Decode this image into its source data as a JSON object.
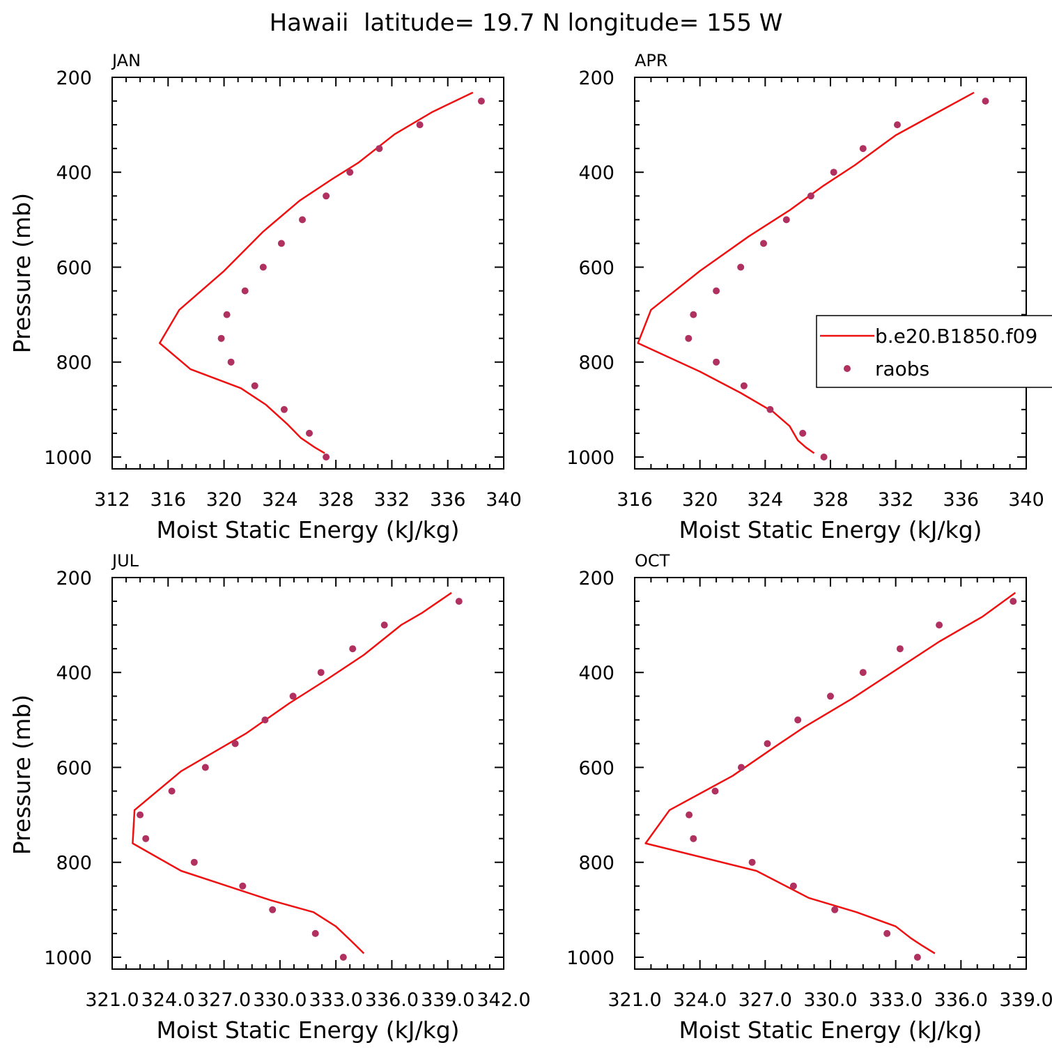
{
  "figure_title": "Hawaii  latitude= 19.7 N longitude= 155 W",
  "legend": {
    "line_label": "b.e20.B1850.f09",
    "marker_label": "raobs",
    "placement": "right of APR panel"
  },
  "colors": {
    "model_line": "#ee1111",
    "obs_marker": "#b03060",
    "axes": "#000000"
  },
  "chart_data": [
    {
      "type": "line+scatter",
      "panel_label": "JAN",
      "xlabel": "Moist Static Energy (kJ/kg)",
      "ylabel": "Pressure (mb)",
      "xlim": [
        312,
        340
      ],
      "ylim": [
        1025,
        200
      ],
      "y_inverted": true,
      "xticks": [
        312,
        316,
        320,
        324,
        328,
        332,
        336,
        340
      ],
      "xtick_labels": [
        "312",
        "316",
        "320",
        "324",
        "328",
        "332",
        "336",
        "340"
      ],
      "yticks": [
        200,
        400,
        600,
        800,
        1000
      ],
      "ytick_labels": [
        "200",
        "400",
        "600",
        "800",
        "1000"
      ],
      "series": [
        {
          "kind": "line",
          "points": [
            [
              327.2,
              992
            ],
            [
              326.5,
              980
            ],
            [
              325.5,
              960
            ],
            [
              324.5,
              930
            ],
            [
              323,
              890
            ],
            [
              321.2,
              855
            ],
            [
              317.6,
              815
            ],
            [
              315.4,
              760
            ],
            [
              316.8,
              690
            ],
            [
              320,
              608
            ],
            [
              322.8,
              525
            ],
            [
              325.4,
              460
            ],
            [
              327.7,
              415
            ],
            [
              329.6,
              380
            ],
            [
              332.2,
              320
            ],
            [
              334.9,
              273
            ],
            [
              337.8,
              232
            ]
          ]
        },
        {
          "kind": "scatter",
          "points": [
            [
              327.3,
              1000
            ],
            [
              326.1,
              950
            ],
            [
              324.3,
              900
            ],
            [
              322.2,
              850
            ],
            [
              320.5,
              800
            ],
            [
              319.8,
              750
            ],
            [
              320.2,
              700
            ],
            [
              321.5,
              650
            ],
            [
              322.8,
              600
            ],
            [
              324.1,
              550
            ],
            [
              325.6,
              500
            ],
            [
              327.3,
              450
            ],
            [
              329,
              400
            ],
            [
              331.1,
              350
            ],
            [
              334,
              300
            ],
            [
              338.4,
              250
            ]
          ]
        }
      ]
    },
    {
      "type": "line+scatter",
      "panel_label": "APR",
      "xlabel": "Moist Static Energy (kJ/kg)",
      "ylabel": "",
      "xlim": [
        316,
        340
      ],
      "ylim": [
        1025,
        200
      ],
      "y_inverted": true,
      "xticks": [
        316,
        320,
        324,
        328,
        332,
        336,
        340
      ],
      "xtick_labels": [
        "316",
        "320",
        "324",
        "328",
        "332",
        "336",
        "340"
      ],
      "yticks": [
        200,
        400,
        600,
        800,
        1000
      ],
      "ytick_labels": [
        "200",
        "400",
        "600",
        "800",
        "1000"
      ],
      "series": [
        {
          "kind": "line",
          "points": [
            [
              327,
              992
            ],
            [
              326.5,
              980
            ],
            [
              326,
              965
            ],
            [
              325.5,
              935
            ],
            [
              324.5,
              905
            ],
            [
              322.5,
              865
            ],
            [
              320,
              820
            ],
            [
              316.2,
              760
            ],
            [
              317,
              690
            ],
            [
              320,
              608
            ],
            [
              323,
              535
            ],
            [
              325.5,
              480
            ],
            [
              327.5,
              430
            ],
            [
              329.5,
              385
            ],
            [
              332,
              322
            ],
            [
              334.5,
              275
            ],
            [
              336.8,
              232
            ]
          ]
        },
        {
          "kind": "scatter",
          "points": [
            [
              327.6,
              1000
            ],
            [
              326.3,
              950
            ],
            [
              324.3,
              900
            ],
            [
              322.7,
              850
            ],
            [
              321,
              800
            ],
            [
              319.3,
              750
            ],
            [
              319.6,
              700
            ],
            [
              321,
              650
            ],
            [
              322.5,
              600
            ],
            [
              323.9,
              550
            ],
            [
              325.3,
              500
            ],
            [
              326.8,
              450
            ],
            [
              328.2,
              400
            ],
            [
              330,
              350
            ],
            [
              332.1,
              300
            ],
            [
              337.5,
              250
            ]
          ]
        }
      ]
    },
    {
      "type": "line+scatter",
      "panel_label": "JUL",
      "xlabel": "Moist Static Energy (kJ/kg)",
      "ylabel": "Pressure (mb)",
      "xlim": [
        321.0,
        342.0
      ],
      "ylim": [
        1025,
        200
      ],
      "y_inverted": true,
      "xticks": [
        321,
        324,
        327,
        330,
        333,
        336,
        339,
        342
      ],
      "xtick_labels": [
        "321.0",
        "324.0",
        "327.0",
        "330.0",
        "333.0",
        "336.0",
        "339.0",
        "342.0"
      ],
      "yticks": [
        200,
        400,
        600,
        800,
        1000
      ],
      "ytick_labels": [
        "200",
        "400",
        "600",
        "800",
        "1000"
      ],
      "series": [
        {
          "kind": "line",
          "points": [
            [
              334.5,
              992
            ],
            [
              333.8,
              965
            ],
            [
              333,
              935
            ],
            [
              331.8,
              905
            ],
            [
              329.5,
              880
            ],
            [
              324.7,
              818
            ],
            [
              322.1,
              760
            ],
            [
              322.2,
              690
            ],
            [
              324.7,
              608
            ],
            [
              328.2,
              528
            ],
            [
              330.5,
              465
            ],
            [
              332.5,
              415
            ],
            [
              334.5,
              363
            ],
            [
              336.5,
              300
            ],
            [
              337.6,
              275
            ],
            [
              339.2,
              232
            ]
          ]
        },
        {
          "kind": "scatter",
          "points": [
            [
              333.4,
              1000
            ],
            [
              331.9,
              950
            ],
            [
              329.6,
              900
            ],
            [
              328,
              850
            ],
            [
              325.4,
              800
            ],
            [
              322.8,
              750
            ],
            [
              322.5,
              700
            ],
            [
              324.2,
              650
            ],
            [
              326,
              600
            ],
            [
              327.6,
              550
            ],
            [
              329.2,
              500
            ],
            [
              330.7,
              450
            ],
            [
              332.2,
              400
            ],
            [
              333.9,
              350
            ],
            [
              335.6,
              300
            ],
            [
              339.6,
              250
            ]
          ]
        }
      ]
    },
    {
      "type": "line+scatter",
      "panel_label": "OCT",
      "xlabel": "Moist Static Energy (kJ/kg)",
      "ylabel": "",
      "xlim": [
        321.0,
        339.0
      ],
      "ylim": [
        1025,
        200
      ],
      "y_inverted": true,
      "xticks": [
        321,
        324,
        327,
        330,
        333,
        336,
        339
      ],
      "xtick_labels": [
        "321.0",
        "324.0",
        "327.0",
        "330.0",
        "333.0",
        "336.0",
        "339.0"
      ],
      "yticks": [
        200,
        400,
        600,
        800,
        1000
      ],
      "ytick_labels": [
        "200",
        "400",
        "600",
        "800",
        "1000"
      ],
      "series": [
        {
          "kind": "line",
          "points": [
            [
              334.8,
              992
            ],
            [
              334.2,
              975
            ],
            [
              333.7,
              960
            ],
            [
              333,
              935
            ],
            [
              331.2,
              905
            ],
            [
              329,
              875
            ],
            [
              326.6,
              818
            ],
            [
              321.5,
              760
            ],
            [
              322.6,
              690
            ],
            [
              325.5,
              618
            ],
            [
              327.5,
              555
            ],
            [
              328.8,
              515
            ],
            [
              331,
              455
            ],
            [
              333,
              395
            ],
            [
              335,
              335
            ],
            [
              337,
              282
            ],
            [
              338.5,
              232
            ]
          ]
        },
        {
          "kind": "scatter",
          "points": [
            [
              334,
              1000
            ],
            [
              332.6,
              950
            ],
            [
              330.2,
              900
            ],
            [
              328.3,
              850
            ],
            [
              326.4,
              800
            ],
            [
              323.7,
              750
            ],
            [
              323.5,
              700
            ],
            [
              324.7,
              650
            ],
            [
              325.9,
              600
            ],
            [
              327.1,
              550
            ],
            [
              328.5,
              500
            ],
            [
              330,
              450
            ],
            [
              331.5,
              400
            ],
            [
              333.2,
              350
            ],
            [
              335,
              300
            ],
            [
              338.4,
              250
            ]
          ]
        }
      ]
    }
  ]
}
